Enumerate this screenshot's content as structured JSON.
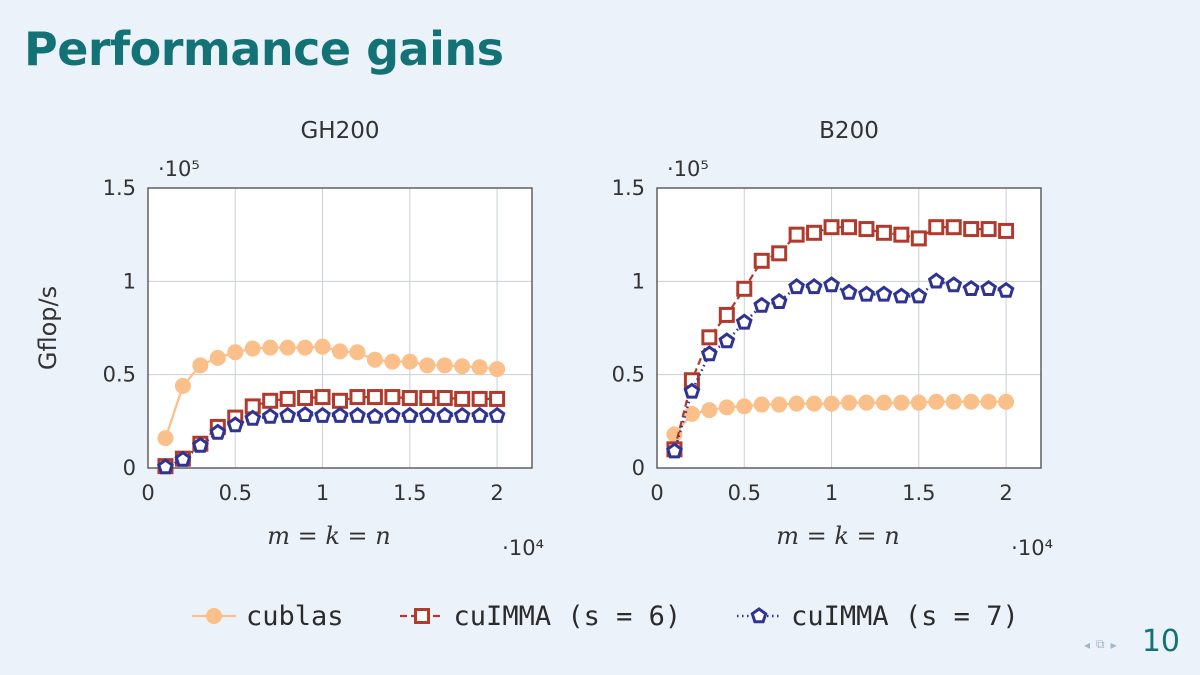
{
  "slide": {
    "title": "Performance gains",
    "page_number": "10"
  },
  "colors": {
    "cublas": "#fbbf8a",
    "cuimma6": "#b23a2c",
    "cuimma7": "#2f3392",
    "title": "#137275",
    "background": "#ecf2fa"
  },
  "legend": [
    {
      "label": "cublas",
      "series": "cublas",
      "marker": "circle",
      "line": "solid"
    },
    {
      "label": "cuIMMA (s = 6)",
      "series": "cuimma6",
      "marker": "square",
      "line": "dashed"
    },
    {
      "label": "cuIMMA (s = 7)",
      "series": "cuimma7",
      "marker": "pentagon",
      "line": "dotted"
    }
  ],
  "chart_data": [
    {
      "type": "line",
      "title": "GH200",
      "xlabel": "m = k = n",
      "ylabel": "Gflop/s",
      "x_multiplier": "·10⁴",
      "y_multiplier": "·10⁵",
      "xlim": [
        0,
        2.2
      ],
      "ylim": [
        0,
        1.5
      ],
      "xticks": [
        0,
        0.5,
        1,
        1.5,
        2
      ],
      "yticks": [
        0,
        0.5,
        1,
        1.5
      ],
      "xtick_labels": [
        "0",
        "0.5",
        "1",
        "1.5",
        "2"
      ],
      "ytick_labels": [
        "0",
        "0.5",
        "1",
        "1.5"
      ],
      "grid": true,
      "x": [
        0.1,
        0.2,
        0.3,
        0.4,
        0.5,
        0.6,
        0.7,
        0.8,
        0.9,
        1.0,
        1.1,
        1.2,
        1.3,
        1.4,
        1.5,
        1.6,
        1.7,
        1.8,
        1.9,
        2.0
      ],
      "series": [
        {
          "name": "cublas",
          "key": "cublas",
          "values": [
            0.16,
            0.44,
            0.55,
            0.59,
            0.62,
            0.64,
            0.645,
            0.645,
            0.645,
            0.65,
            0.625,
            0.62,
            0.58,
            0.57,
            0.57,
            0.55,
            0.55,
            0.545,
            0.54,
            0.53
          ]
        },
        {
          "name": "cuIMMA (s = 6)",
          "key": "cuimma6",
          "values": [
            0.01,
            0.05,
            0.13,
            0.22,
            0.27,
            0.33,
            0.36,
            0.37,
            0.375,
            0.38,
            0.36,
            0.38,
            0.38,
            0.38,
            0.375,
            0.375,
            0.375,
            0.37,
            0.37,
            0.37
          ]
        },
        {
          "name": "cuIMMA (s = 7)",
          "key": "cuimma7",
          "values": [
            0.005,
            0.045,
            0.12,
            0.19,
            0.23,
            0.265,
            0.275,
            0.28,
            0.285,
            0.28,
            0.28,
            0.28,
            0.275,
            0.28,
            0.28,
            0.28,
            0.28,
            0.28,
            0.28,
            0.28
          ]
        }
      ]
    },
    {
      "type": "line",
      "title": "B200",
      "xlabel": "m = k = n",
      "ylabel": "",
      "x_multiplier": "·10⁴",
      "y_multiplier": "·10⁵",
      "xlim": [
        0,
        2.2
      ],
      "ylim": [
        0,
        1.5
      ],
      "xticks": [
        0,
        0.5,
        1,
        1.5,
        2
      ],
      "yticks": [
        0,
        0.5,
        1,
        1.5
      ],
      "xtick_labels": [
        "0",
        "0.5",
        "1",
        "1.5",
        "2"
      ],
      "ytick_labels": [
        "0",
        "0.5",
        "1",
        "1.5"
      ],
      "grid": true,
      "x": [
        0.1,
        0.2,
        0.3,
        0.4,
        0.5,
        0.6,
        0.7,
        0.8,
        0.9,
        1.0,
        1.1,
        1.2,
        1.3,
        1.4,
        1.5,
        1.6,
        1.7,
        1.8,
        1.9,
        2.0
      ],
      "series": [
        {
          "name": "cublas",
          "key": "cublas",
          "values": [
            0.18,
            0.29,
            0.31,
            0.325,
            0.33,
            0.34,
            0.34,
            0.345,
            0.345,
            0.345,
            0.35,
            0.35,
            0.35,
            0.35,
            0.35,
            0.355,
            0.355,
            0.355,
            0.355,
            0.355
          ]
        },
        {
          "name": "cuIMMA (s = 6)",
          "key": "cuimma6",
          "values": [
            0.1,
            0.47,
            0.7,
            0.82,
            0.96,
            1.11,
            1.15,
            1.25,
            1.26,
            1.29,
            1.29,
            1.28,
            1.26,
            1.25,
            1.23,
            1.29,
            1.29,
            1.28,
            1.28,
            1.27
          ]
        },
        {
          "name": "cuIMMA (s = 7)",
          "key": "cuimma7",
          "values": [
            0.09,
            0.41,
            0.61,
            0.68,
            0.78,
            0.87,
            0.89,
            0.97,
            0.97,
            0.98,
            0.94,
            0.93,
            0.93,
            0.92,
            0.92,
            1.0,
            0.98,
            0.96,
            0.96,
            0.95
          ]
        }
      ]
    }
  ]
}
